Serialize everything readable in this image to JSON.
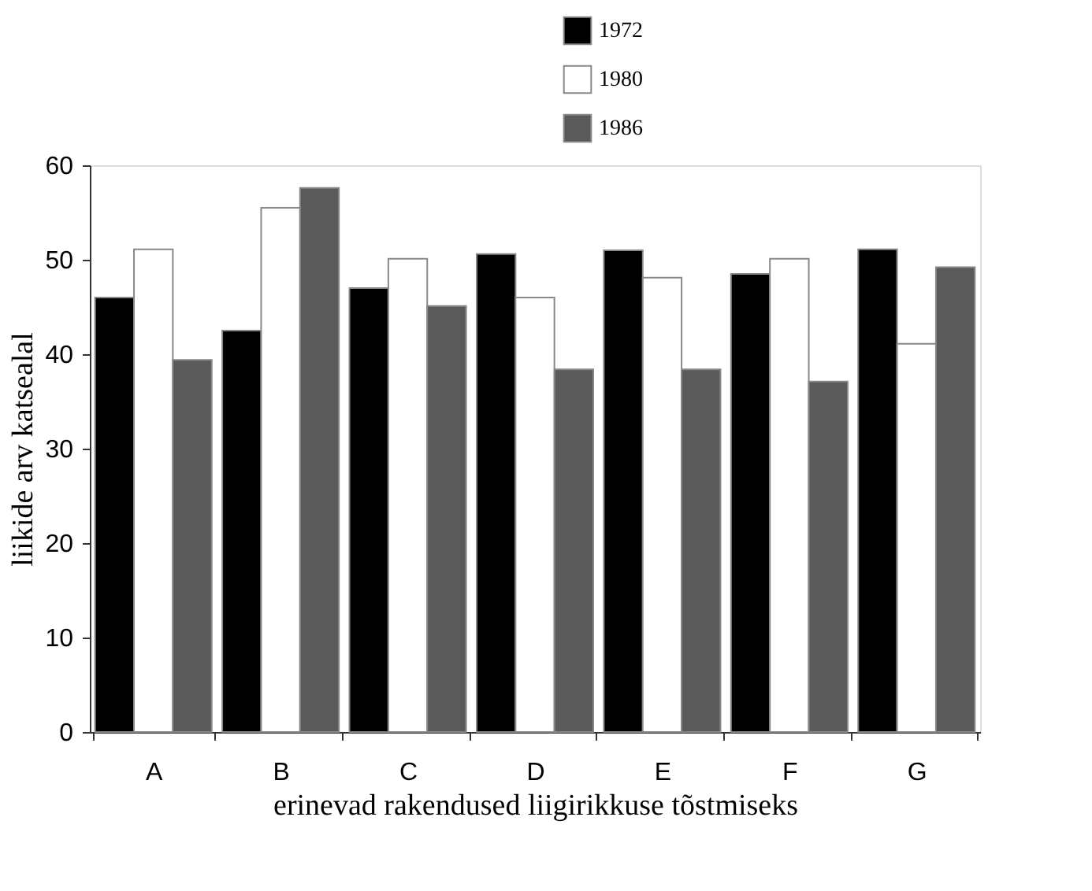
{
  "chart_data": {
    "type": "bar",
    "xlabel": "erinevad rakendused liigirikkuse tõstmiseks",
    "ylabel": "liikide arv katsealal",
    "categories": [
      "A",
      "B",
      "C",
      "D",
      "E",
      "F",
      "G"
    ],
    "series": [
      {
        "name": "1972",
        "color": "#000000",
        "values": [
          46.0,
          42.5,
          47.0,
          50.6,
          51.0,
          48.5,
          51.1
        ]
      },
      {
        "name": "1980",
        "color": "#ffffff",
        "values": [
          51.1,
          55.5,
          50.1,
          46.0,
          48.1,
          50.1,
          41.1
        ]
      },
      {
        "name": "1986",
        "color": "#5a5a5a",
        "values": [
          39.4,
          57.6,
          45.1,
          38.4,
          38.4,
          37.1,
          49.2
        ]
      }
    ],
    "ylim": [
      0,
      60
    ],
    "yticks": [
      0,
      10,
      20,
      30,
      40,
      50,
      60
    ],
    "legend": "top right"
  }
}
